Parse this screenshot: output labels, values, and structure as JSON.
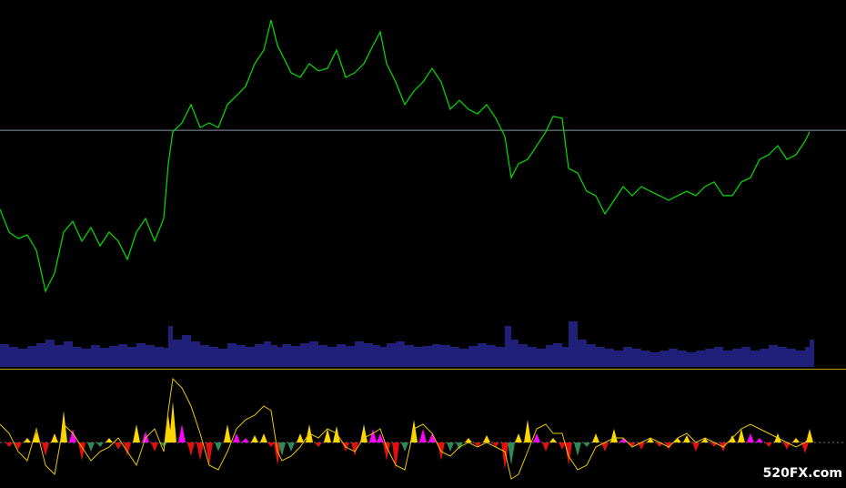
{
  "chart_data": {
    "type": "line",
    "xlim": [
      0,
      930
    ],
    "x": [
      0,
      10,
      20,
      30,
      40,
      50,
      60,
      70,
      80,
      90,
      100,
      110,
      120,
      130,
      140,
      150,
      160,
      170,
      180,
      185,
      190,
      200,
      210,
      220,
      230,
      240,
      250,
      260,
      270,
      280,
      290,
      298,
      305,
      310,
      320,
      330,
      340,
      350,
      360,
      370,
      380,
      390,
      400,
      410,
      418,
      425,
      435,
      445,
      455,
      465,
      475,
      485,
      495,
      505,
      515,
      525,
      535,
      545,
      555,
      562,
      570,
      580,
      590,
      600,
      608,
      618,
      625,
      635,
      645,
      655,
      665,
      675,
      685,
      695,
      705,
      715,
      725,
      735,
      745,
      755,
      765,
      775,
      785,
      795,
      805,
      815,
      825,
      835,
      845,
      855,
      865,
      875,
      885,
      890
    ],
    "price": {
      "color": "#00e000",
      "ylim": [
        0,
        100
      ],
      "level": 57.9,
      "level_color": "#8a98a8",
      "values": [
        32.4,
        25,
        22.9,
        24.1,
        19.1,
        5.9,
        11.8,
        25,
        28.5,
        22.1,
        26.5,
        20.6,
        25,
        22.1,
        16.2,
        25,
        29.4,
        22.1,
        29.4,
        47.1,
        57.4,
        60.3,
        66.2,
        58.8,
        60.3,
        58.8,
        66.2,
        69.1,
        72.1,
        79.4,
        83.8,
        93.5,
        85.3,
        82.4,
        76.5,
        75,
        79.4,
        77.1,
        77.9,
        83.8,
        75,
        76.5,
        79.4,
        85.3,
        89.7,
        79.4,
        73.5,
        66.2,
        70.6,
        73.5,
        77.9,
        73.5,
        64.7,
        67.6,
        64.7,
        63.2,
        66.2,
        61.8,
        55.9,
        42.6,
        47.1,
        48.5,
        52.9,
        57.4,
        62.4,
        61.8,
        45.6,
        44.1,
        38.2,
        36.8,
        30.9,
        35.3,
        39.7,
        36.8,
        39.7,
        38.2,
        36.8,
        35.3,
        36.8,
        38.2,
        36.8,
        39.7,
        41.2,
        36.8,
        36.8,
        41.2,
        42.6,
        48.5,
        50,
        52.9,
        48.5,
        50,
        54.4,
        57.4
      ]
    },
    "volume": {
      "color": "#20207a",
      "ylim": [
        0,
        50
      ],
      "separator_color": "#b8a000",
      "values": [
        25,
        22,
        20,
        23,
        26,
        30,
        24,
        28,
        22,
        20,
        24,
        21,
        23,
        25,
        22,
        26,
        24,
        22,
        21,
        45,
        30,
        35,
        28,
        24,
        22,
        20,
        26,
        24,
        22,
        25,
        28,
        24,
        22,
        25,
        23,
        26,
        28,
        24,
        22,
        25,
        23,
        28,
        26,
        24,
        22,
        26,
        28,
        24,
        22,
        23,
        25,
        24,
        22,
        20,
        23,
        26,
        24,
        22,
        45,
        30,
        25,
        22,
        20,
        24,
        26,
        22,
        50,
        30,
        25,
        22,
        20,
        18,
        22,
        20,
        18,
        16,
        18,
        20,
        18,
        16,
        18,
        20,
        22,
        18,
        20,
        22,
        18,
        20,
        24,
        22,
        20,
        18,
        22,
        30
      ]
    },
    "oscillator": {
      "ylim": [
        -50,
        76
      ],
      "signal_color": "#e8c800",
      "zero_color": "#777777",
      "colors": {
        "up_rising": "#ffd700",
        "up_falling": "#ff00ff",
        "down_falling": "#e01010",
        "down_rising": "#2e8b57"
      },
      "histogram": [
        0,
        -5,
        -8,
        5,
        12,
        -15,
        10,
        35,
        15,
        -20,
        -10,
        -5,
        5,
        -8,
        -15,
        20,
        12,
        -10,
        -5,
        30,
        45,
        20,
        -15,
        -20,
        -25,
        -10,
        20,
        10,
        5,
        8,
        10,
        -5,
        -25,
        -15,
        -10,
        10,
        20,
        -5,
        15,
        18,
        -10,
        -15,
        20,
        15,
        10,
        -20,
        -30,
        -10,
        25,
        15,
        10,
        -20,
        -10,
        -8,
        5,
        -5,
        8,
        -5,
        -30,
        -25,
        10,
        25,
        10,
        -10,
        5,
        -8,
        -25,
        -15,
        -5,
        10,
        -10,
        15,
        5,
        -5,
        -8,
        5,
        -5,
        -8,
        5,
        8,
        -10,
        5,
        -5,
        -10,
        8,
        15,
        10,
        5,
        -5,
        10,
        -8,
        5,
        -12,
        15
      ],
      "signal": [
        20,
        10,
        -10,
        -20,
        15,
        -25,
        -35,
        20,
        10,
        -5,
        -20,
        -10,
        -5,
        5,
        -10,
        -25,
        5,
        15,
        -10,
        35,
        70,
        60,
        40,
        10,
        -25,
        -30,
        -10,
        15,
        25,
        30,
        40,
        35,
        -10,
        -20,
        -15,
        -5,
        10,
        5,
        15,
        10,
        -5,
        -10,
        5,
        10,
        15,
        -5,
        -25,
        -30,
        15,
        20,
        10,
        -10,
        -15,
        -5,
        0,
        -5,
        0,
        -5,
        -10,
        -40,
        -35,
        -10,
        15,
        20,
        10,
        10,
        -15,
        -30,
        -25,
        -5,
        0,
        5,
        5,
        -5,
        0,
        5,
        0,
        -5,
        5,
        10,
        0,
        5,
        0,
        -5,
        5,
        15,
        20,
        15,
        10,
        5,
        0,
        -5,
        0,
        5
      ]
    }
  },
  "watermark": "520FX.com"
}
